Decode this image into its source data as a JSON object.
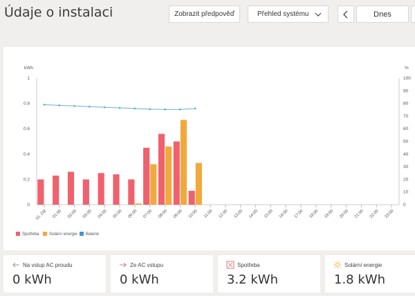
{
  "header": {
    "title": "Údaje o instalaci",
    "forecast_button": "Zobrazit předpověď",
    "view_select": "Přehled systému",
    "date_label": "Dnes"
  },
  "colors": {
    "consumption": "#f0616e",
    "solar": "#f2a93b",
    "battery": "#4a90d9",
    "battery_line": "#69b0cc"
  },
  "chart_data": {
    "type": "bar",
    "left_axis_unit": "kWh",
    "right_axis_unit": "%",
    "ylim_left": [
      0,
      1
    ],
    "ylim_right": [
      0,
      100
    ],
    "left_ticks": [
      "0",
      "0.2",
      "0.4",
      "0.6",
      "0.8",
      "1"
    ],
    "right_ticks": [
      "0",
      "10",
      "20",
      "30",
      "40",
      "50",
      "60",
      "70",
      "80",
      "90",
      "100"
    ],
    "categories": [
      "10. Zář",
      "01:00",
      "02:00",
      "03:00",
      "04:00",
      "05:00",
      "06:00",
      "07:00",
      "08:00",
      "09:00",
      "10:00",
      "11:00",
      "12:00",
      "13:00",
      "14:00",
      "15:00",
      "16:00",
      "17:00",
      "18:00",
      "19:00",
      "20:00",
      "21:00",
      "22:00",
      "23:00"
    ],
    "series": [
      {
        "name": "Spotřeba",
        "axis": "left",
        "values": [
          0.2,
          0.23,
          0.26,
          0.2,
          0.25,
          0.24,
          0.2,
          0.45,
          0.56,
          0.5,
          0.11,
          null,
          null,
          null,
          null,
          null,
          null,
          null,
          null,
          null,
          null,
          null,
          null,
          null
        ]
      },
      {
        "name": "Solární energie",
        "axis": "left",
        "values": [
          0,
          0,
          0,
          0,
          0,
          0,
          0.01,
          0.32,
          0.46,
          0.67,
          0.33,
          null,
          null,
          null,
          null,
          null,
          null,
          null,
          null,
          null,
          null,
          null,
          null,
          null
        ]
      },
      {
        "name": "Baterie",
        "axis": "right",
        "type": "line",
        "values": [
          79,
          78.5,
          78,
          77.5,
          77,
          76.5,
          76,
          75.5,
          75.3,
          75.3,
          76,
          null,
          null,
          null,
          null,
          null,
          null,
          null,
          null,
          null,
          null,
          null,
          null,
          null
        ]
      }
    ],
    "legend_position": "bottom-left",
    "grid": false
  },
  "tiles": [
    {
      "label": "Na vstup AC proudu",
      "value": "0 kWh",
      "icon": "arrow-left-icon"
    },
    {
      "label": "Ze AC vstupu",
      "value": "0 kWh",
      "icon": "arrow-right-icon"
    },
    {
      "label": "Spotřeba",
      "value": "3.2 kWh",
      "icon": "consumption-icon"
    },
    {
      "label": "Solární energie",
      "value": "1.8 kWh",
      "icon": "sun-icon"
    }
  ]
}
